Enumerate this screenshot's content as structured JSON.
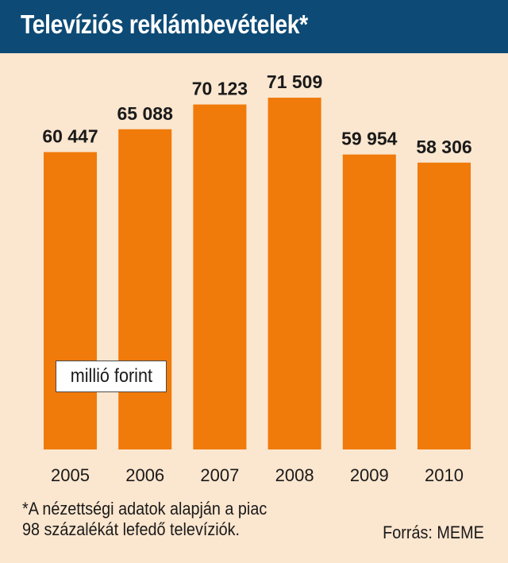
{
  "header": {
    "title": "Televíziós reklámbevételek*"
  },
  "unit_label": "millió forint",
  "footnote": {
    "line1": "*A nézettségi adatok alapján a piac",
    "line2": "98 százalékát lefedő televíziók."
  },
  "source": "Forrás: MEME",
  "colors": {
    "header_bg": "#0d4a75",
    "panel_bg": "#fbe6cf",
    "bar": "#f07a0a"
  },
  "chart_data": {
    "type": "bar",
    "title": "Televíziós reklámbevételek*",
    "categories": [
      "2005",
      "2006",
      "2007",
      "2008",
      "2009",
      "2010"
    ],
    "values": [
      60447,
      65088,
      70123,
      71509,
      59954,
      58306
    ],
    "value_labels": [
      "60 447",
      "65 088",
      "70 123",
      "71 509",
      "59 954",
      "58 306"
    ],
    "unit": "millió forint",
    "ylim": [
      0,
      71509
    ],
    "grid": false,
    "legend": "none"
  }
}
